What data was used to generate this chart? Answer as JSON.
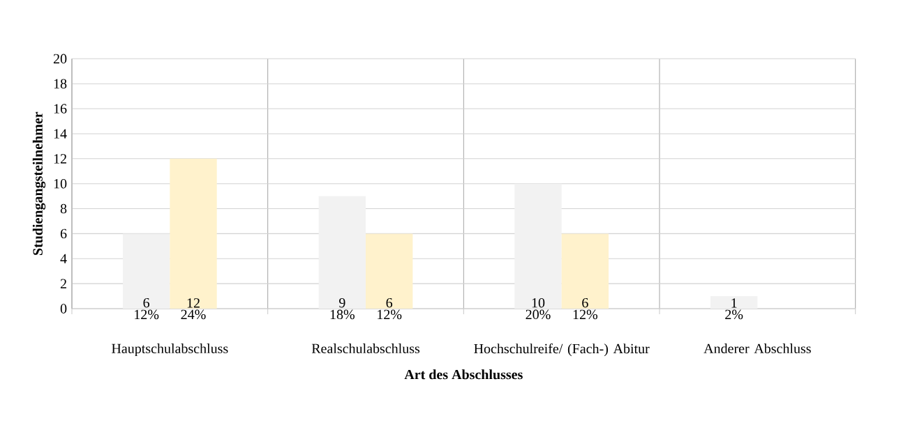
{
  "chart_data": {
    "type": "bar",
    "xlabel": "Art des Abschlusses",
    "ylabel": "Studiengangsteilnehmer",
    "categories": [
      "Hauptschulabschluss",
      "Realschulabschluss",
      "Hochschulreife/ (Fach-) Abitur",
      "Anderer Abschluss"
    ],
    "series": [
      {
        "color": "#f2f2f2",
        "values": [
          6,
          9,
          10,
          1
        ]
      },
      {
        "color": "#fff2cc",
        "values": [
          12,
          6,
          6,
          null
        ]
      }
    ],
    "ylim": [
      0,
      20
    ],
    "yticks": [
      0,
      2,
      4,
      6,
      8,
      10,
      12,
      14,
      16,
      18,
      20
    ],
    "grid": true,
    "data_labels": true,
    "annotations": [
      "12%",
      "24%",
      "18%",
      "12%",
      "20%",
      "12%",
      "2%"
    ]
  }
}
